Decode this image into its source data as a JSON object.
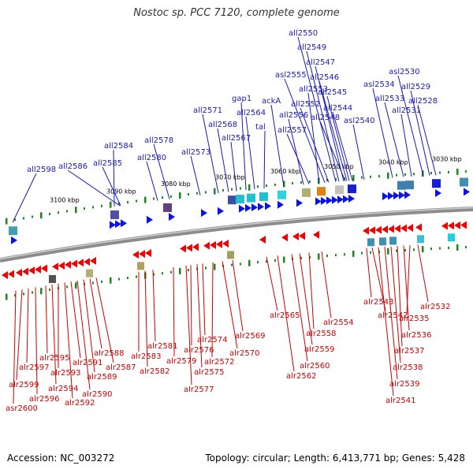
{
  "title": "Nostoc sp. PCC 7120, complete genome",
  "footer": {
    "accession": "Accession: NC_003272",
    "summary": "Topology: circular; Length: 6,413,771 bp; Genes: 5,428"
  },
  "colors": {
    "forward_label": "#1a1ab4",
    "reverse_label": "#cc0000",
    "forward_arrow": "#0a14e6",
    "reverse_arrow": "#f00000",
    "backbone": "#8c8c8c",
    "tick": "#1a8a1a"
  },
  "kbp_labels": [
    {
      "text": "3100 kbp"
    },
    {
      "text": "3090 kbp"
    },
    {
      "text": "3080 kbp"
    },
    {
      "text": "3070 kbp"
    },
    {
      "text": "3060 kbp"
    },
    {
      "text": "3050 kbp"
    },
    {
      "text": "3040 kbp"
    },
    {
      "text": "3030 kbp"
    }
  ],
  "forward_genes": [
    "all2598",
    "all2586",
    "all2585",
    "all2584",
    "all2580",
    "all2578",
    "all2573",
    "all2571",
    "all2568",
    "all2567",
    "gap1",
    "all2564",
    "tal",
    "ackA",
    "all2556",
    "all2557",
    "asl2555",
    "all2553",
    "all2552",
    "all2550",
    "all2549",
    "all2547",
    "all2546",
    "all2545",
    "all2544",
    "all2548",
    "asl2540",
    "asl2534",
    "all2533",
    "all2531",
    "asl2530",
    "all2529",
    "all2528"
  ],
  "reverse_genes": [
    "asr2600",
    "alr2599",
    "alr2597",
    "alr2596",
    "alr2595",
    "alr2594",
    "alr2593",
    "alr2592",
    "alr2591",
    "alr2590",
    "alr2589",
    "alr2588",
    "alr2587",
    "alr2583",
    "alr2582",
    "alr2581",
    "alr2579",
    "alr2577",
    "alr2576",
    "alr2575",
    "alr2574",
    "alr2572",
    "alr2570",
    "alr2569",
    "alr2565",
    "alr2562",
    "alr2560",
    "alr2559",
    "alr2558",
    "alr2554",
    "alr2543",
    "alr2542",
    "alr2541",
    "alr2539",
    "alr2538",
    "alr2537",
    "alr2536",
    "alr2535",
    "alr2532"
  ]
}
